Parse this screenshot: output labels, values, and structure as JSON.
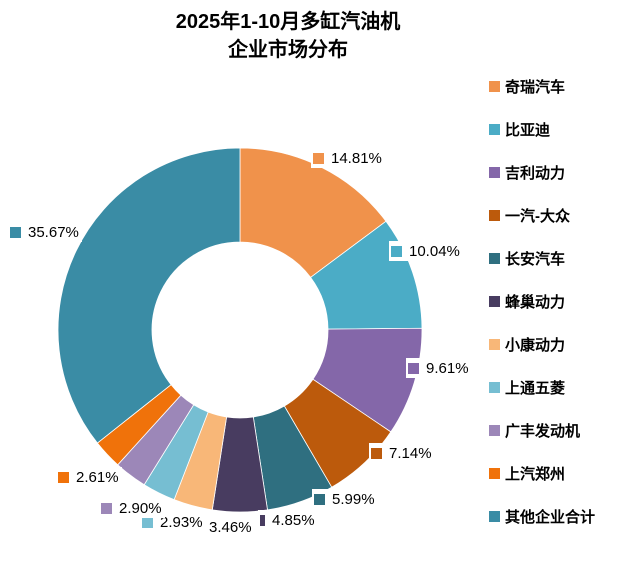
{
  "title": {
    "line1": "2025年1-10月多缸汽油机",
    "line2": "企业市场分布"
  },
  "chart_data": {
    "type": "pie",
    "subtype": "donut",
    "title": "2025年1-10月多缸汽油机 企业市场分布",
    "start_angle_deg": 0,
    "direction": "clockwise",
    "legend_position": "right",
    "labels_show_percent": true,
    "labels_show_legend_key": true,
    "slices": [
      {
        "name": "奇瑞汽车",
        "value": 14.81,
        "label": "14.81%",
        "color": "#F0924B"
      },
      {
        "name": "比亚迪",
        "value": 10.04,
        "label": "10.04%",
        "color": "#4BACC6"
      },
      {
        "name": "吉利动力",
        "value": 9.61,
        "label": "9.61%",
        "color": "#8467A9"
      },
      {
        "name": "一汽-大众",
        "value": 7.14,
        "label": "7.14%",
        "color": "#BC5A0C"
      },
      {
        "name": "长安汽车",
        "value": 5.99,
        "label": "5.99%",
        "color": "#2F6F80"
      },
      {
        "name": "蜂巢动力",
        "value": 4.85,
        "label": "4.85%",
        "color": "#483C60"
      },
      {
        "name": "小康动力",
        "value": 3.46,
        "label": "3.46%",
        "color": "#F8B778"
      },
      {
        "name": "上通五菱",
        "value": 2.93,
        "label": "2.93%",
        "color": "#76BED2"
      },
      {
        "name": "广丰发动机",
        "value": 2.9,
        "label": "2.90%",
        "color": "#9C87B8"
      },
      {
        "name": "上汽郑州",
        "value": 2.61,
        "label": "2.61%",
        "color": "#F0720A"
      },
      {
        "name": "其他企业合计",
        "value": 35.67,
        "label": "35.67%",
        "color": "#3A8CA5"
      }
    ]
  }
}
